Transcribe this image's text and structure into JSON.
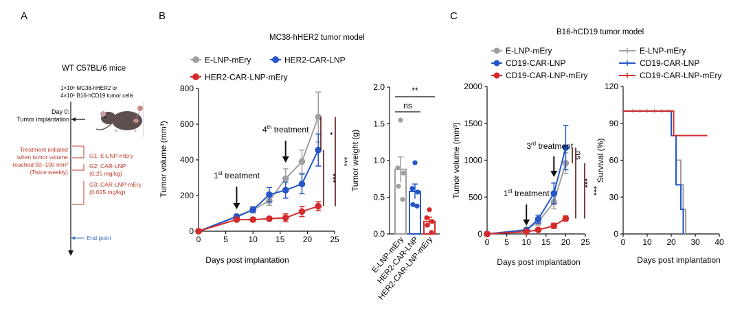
{
  "colors": {
    "grey": "#a0a0a0",
    "blue": "#2456c8",
    "red": "#d42a2a",
    "black": "#111111",
    "darkred": "#5a1212",
    "annot_red": "#c0392b",
    "endpoint_blue": "#2a6fc0",
    "mouse": "#5e4f4f",
    "mouse_ear": "#c9a0a0",
    "tumor": "#c98a8a"
  },
  "panels": {
    "A": {
      "letter": "A",
      "title": "WT C57BL/6 mice",
      "cells_line1": "1×10⁶ MC38-hHER2 or",
      "cells_line2": "4×10⁵ B16-hCD19 tumor cells",
      "day0_line1": "Day 0:",
      "day0_line2": "Tumor implantation",
      "treat_line1": "Treatment initiated",
      "treat_line2": "when tumor volume",
      "treat_line3": "reached 50–100 mm³",
      "treat_line4": "(Twice weekly)",
      "g1": "G1: E-LNP-mEry",
      "g2_line1": "G2: CAR-LNP",
      "g2_line2": "(0.25 mg/kg)",
      "g3_line1": "G3: CAR-LNP-mEry",
      "g3_line2": "(0.025 mg/kg)",
      "endpoint": "End point"
    },
    "B": {
      "letter": "B",
      "title": "MC38-hHER2 tumor model"
    },
    "C": {
      "letter": "C",
      "title": "B16-hCD19 tumor model"
    }
  },
  "chart_data": [
    {
      "id": "B_volume",
      "type": "line",
      "title": "MC38-hHER2 tumor model",
      "xlabel": "Days post implantation",
      "ylabel": "Tumor volume (mm³)",
      "xlim": [
        0,
        25
      ],
      "ylim": [
        0,
        800
      ],
      "xticks": [
        0,
        5,
        10,
        15,
        20,
        25
      ],
      "yticks": [
        0,
        200,
        400,
        600,
        800
      ],
      "legend": [
        "E-LNP-mEry",
        "HER2-CAR-LNP",
        "HER2-CAR-LNP-mEry"
      ],
      "series": [
        {
          "name": "E-LNP-mEry",
          "color": "grey",
          "x": [
            0,
            7,
            10,
            13,
            16,
            19,
            22
          ],
          "y": [
            0,
            85,
            120,
            170,
            295,
            390,
            640
          ],
          "err": [
            5,
            10,
            18,
            25,
            55,
            65,
            140
          ]
        },
        {
          "name": "HER2-CAR-LNP",
          "color": "blue",
          "x": [
            0,
            7,
            10,
            13,
            16,
            19,
            22
          ],
          "y": [
            0,
            80,
            120,
            205,
            230,
            265,
            455
          ],
          "err": [
            5,
            10,
            15,
            40,
            45,
            55,
            90
          ]
        },
        {
          "name": "HER2-CAR-LNP-mEry",
          "color": "red",
          "x": [
            0,
            7,
            10,
            13,
            16,
            19,
            22
          ],
          "y": [
            0,
            65,
            65,
            70,
            75,
            110,
            140
          ],
          "err": [
            5,
            8,
            10,
            10,
            22,
            28,
            25
          ]
        }
      ],
      "annotations": [
        {
          "text": "1st treatment",
          "main": "1",
          "sup": "st",
          "rest": " treatment",
          "x": 7
        },
        {
          "text": "4th treatment",
          "main": "4",
          "sup": "th",
          "rest": " treatment",
          "x": 16
        }
      ],
      "significance": [
        {
          "label": "*",
          "from": 455,
          "to": 640
        },
        {
          "label": "***",
          "from": 140,
          "to": 455
        },
        {
          "label": "***",
          "from": 140,
          "to": 640
        }
      ]
    },
    {
      "id": "B_weight",
      "type": "bar",
      "ylabel": "Tumor weight (g)",
      "ylim": [
        0,
        2.0
      ],
      "yticks": [
        0.0,
        0.5,
        1.0,
        1.5,
        2.0
      ],
      "categories": [
        "E-LNP-mEry",
        "HER2-CAR-LNP",
        "HER2-CAR-LNP-mEry"
      ],
      "colors": [
        "grey",
        "blue",
        "red"
      ],
      "values": [
        0.88,
        0.58,
        0.17
      ],
      "err": [
        0.17,
        0.1,
        0.06
      ],
      "points": [
        [
          1.55,
          0.9,
          0.83,
          0.65,
          0.47
        ],
        [
          0.97,
          0.62,
          0.57,
          0.4,
          0.38
        ],
        [
          0.33,
          0.22,
          0.17,
          0.12,
          0.02
        ]
      ],
      "significance": [
        {
          "label": "**",
          "from": 0,
          "to": 2
        },
        {
          "label": "ns",
          "from": 0,
          "to": 1
        }
      ]
    },
    {
      "id": "C_volume",
      "type": "line",
      "title": "B16-hCD19 tumor model",
      "xlabel": "Days post implantation",
      "ylabel": "Tumor volume (mm³)",
      "xlim": [
        0,
        25
      ],
      "ylim": [
        0,
        2000
      ],
      "xticks": [
        0,
        5,
        10,
        15,
        20,
        25
      ],
      "yticks": [
        0,
        500,
        1000,
        1500,
        2000
      ],
      "legend": [
        "E-LNP-mEry",
        "CD19-CAR-LNP",
        "CD19-CAR-LNP-mEry"
      ],
      "series": [
        {
          "name": "E-LNP-mEry",
          "color": "grey",
          "x": [
            0,
            10,
            13,
            17,
            20
          ],
          "y": [
            0,
            60,
            160,
            430,
            960
          ],
          "err": [
            5,
            15,
            40,
            90,
            140
          ]
        },
        {
          "name": "CD19-CAR-LNP",
          "color": "blue",
          "x": [
            0,
            10,
            13,
            17,
            20
          ],
          "y": [
            0,
            50,
            200,
            550,
            1170
          ],
          "err": [
            5,
            15,
            55,
            140,
            300
          ]
        },
        {
          "name": "CD19-CAR-LNP-mEry",
          "color": "red",
          "x": [
            0,
            10,
            13,
            17,
            20
          ],
          "y": [
            0,
            30,
            55,
            110,
            210
          ],
          "err": [
            3,
            8,
            15,
            35,
            35
          ]
        }
      ],
      "annotations": [
        {
          "text": "1st treatment",
          "main": "1",
          "sup": "st",
          "rest": " treatment",
          "x": 10
        },
        {
          "text": "3rd treatment",
          "main": "3",
          "sup": "rd",
          "rest": " treatment",
          "x": 17
        }
      ],
      "significance": [
        {
          "label": "ns",
          "from": 960,
          "to": 1170,
          "rot": true
        },
        {
          "label": "***",
          "from": 210,
          "to": 1170
        },
        {
          "label": "***",
          "from": 210,
          "to": 960
        }
      ]
    },
    {
      "id": "C_survival",
      "type": "line",
      "xlabel": "Days post implantation",
      "ylabel": "Survival (%)",
      "xlim": [
        0,
        40
      ],
      "ylim": [
        0,
        120
      ],
      "xticks": [
        0,
        10,
        20,
        30,
        40
      ],
      "yticks": [
        0,
        30,
        60,
        90,
        120
      ],
      "legend": [
        "E-LNP-mEry",
        "CD19-CAR-LNP",
        "CD19-CAR-LNP-mEry"
      ],
      "series": [
        {
          "name": "E-LNP-mEry",
          "color": "grey",
          "steps": [
            [
              0,
              100
            ],
            [
              21,
              100
            ],
            [
              21,
              80
            ],
            [
              22,
              80
            ],
            [
              22,
              60
            ],
            [
              24,
              60
            ],
            [
              24,
              40
            ],
            [
              25,
              40
            ],
            [
              25,
              20
            ],
            [
              26,
              20
            ],
            [
              26,
              0
            ]
          ],
          "censor": [
            4,
            7,
            10,
            13,
            16,
            19
          ]
        },
        {
          "name": "CD19-CAR-LNP",
          "color": "blue",
          "steps": [
            [
              0,
              100
            ],
            [
              20,
              100
            ],
            [
              20,
              80
            ],
            [
              22,
              80
            ],
            [
              22,
              40
            ],
            [
              24,
              40
            ],
            [
              24,
              20
            ],
            [
              25,
              20
            ],
            [
              25,
              0
            ]
          ],
          "censor": []
        },
        {
          "name": "CD19-CAR-LNP-mEry",
          "color": "red",
          "steps": [
            [
              0,
              100
            ],
            [
              21,
              100
            ],
            [
              21,
              80
            ],
            [
              35,
              80
            ]
          ],
          "censor": []
        }
      ]
    }
  ]
}
